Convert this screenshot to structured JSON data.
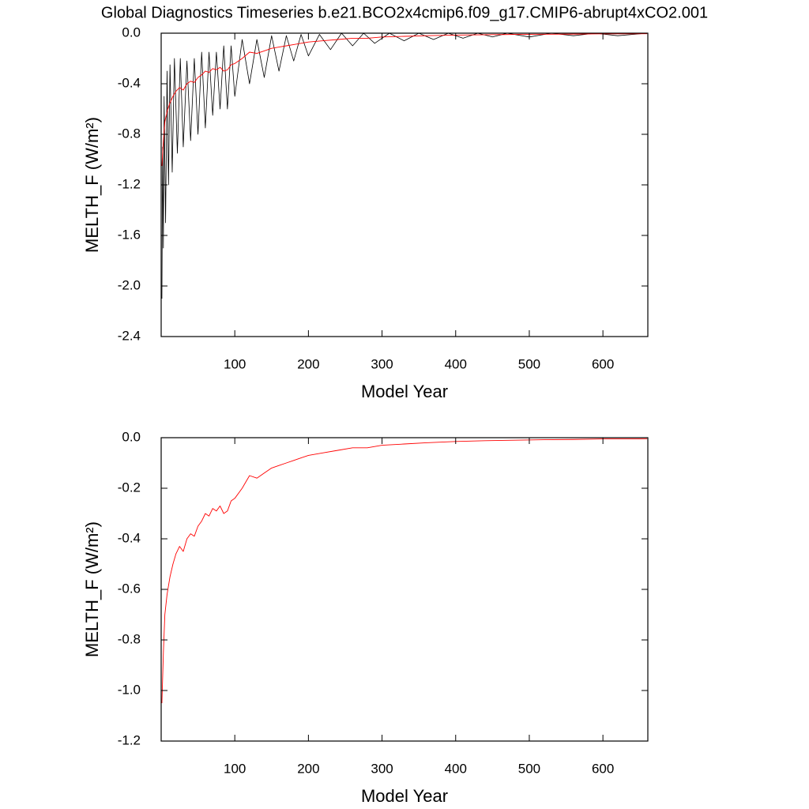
{
  "chart_data": [
    {
      "type": "line",
      "title": "Global Diagnostics Timeseries b.e21.BCO2x4cmip6.f09_g17.CMIP6-abrupt4xCO2.001",
      "xlabel": "Model Year",
      "ylabel": "MELTH_F (W/m²)",
      "xlim": [
        0,
        661
      ],
      "ylim": [
        -2.4,
        0
      ],
      "xticks": [
        100,
        200,
        300,
        400,
        500,
        600
      ],
      "yticks": [
        -2.4,
        {
          "value": -2.0,
          "label": "-2.0"
        },
        -1.6,
        -1.2,
        -0.8,
        -0.4,
        {
          "value": 0,
          "label": "0.0"
        }
      ],
      "series": [
        {
          "color": "#000000",
          "x": [
            1,
            2,
            3,
            4,
            6,
            8,
            10,
            12,
            15,
            18,
            22,
            26,
            30,
            35,
            40,
            45,
            50,
            55,
            60,
            65,
            70,
            75,
            80,
            85,
            90,
            95,
            100,
            110,
            120,
            130,
            140,
            150,
            160,
            170,
            180,
            190,
            200,
            215,
            230,
            245,
            260,
            275,
            290,
            310,
            330,
            350,
            370,
            390,
            410,
            430,
            450,
            470,
            500,
            530,
            560,
            590,
            620,
            660
          ],
          "values": [
            -2.1,
            -0.9,
            -1.7,
            -0.5,
            -1.5,
            -0.3,
            -1.2,
            -0.25,
            -1.1,
            -0.2,
            -0.95,
            -0.2,
            -0.9,
            -0.22,
            -0.85,
            -0.2,
            -0.8,
            -0.15,
            -0.75,
            -0.15,
            -0.65,
            -0.15,
            -0.6,
            -0.1,
            -0.6,
            -0.1,
            -0.5,
            -0.05,
            -0.4,
            -0.05,
            -0.35,
            -0.02,
            -0.3,
            -0.02,
            -0.22,
            -0.01,
            -0.18,
            -0.01,
            -0.13,
            0,
            -0.1,
            0,
            -0.08,
            0,
            -0.06,
            0,
            -0.05,
            0,
            -0.04,
            0,
            -0.03,
            0,
            -0.03,
            0,
            -0.02,
            0,
            -0.02,
            0
          ]
        },
        {
          "color": "#ff0000",
          "x": [
            1,
            3,
            5,
            8,
            12,
            16,
            20,
            25,
            30,
            35,
            40,
            45,
            50,
            55,
            60,
            65,
            70,
            75,
            80,
            85,
            90,
            95,
            100,
            110,
            120,
            130,
            140,
            150,
            160,
            170,
            180,
            190,
            200,
            220,
            240,
            260,
            280,
            300,
            330,
            360,
            400,
            440,
            480,
            520,
            560,
            600,
            640,
            660
          ],
          "values": [
            -1.05,
            -0.85,
            -0.7,
            -0.62,
            -0.55,
            -0.5,
            -0.46,
            -0.43,
            -0.45,
            -0.4,
            -0.38,
            -0.39,
            -0.35,
            -0.33,
            -0.3,
            -0.31,
            -0.28,
            -0.29,
            -0.27,
            -0.3,
            -0.29,
            -0.25,
            -0.24,
            -0.2,
            -0.15,
            -0.16,
            -0.14,
            -0.12,
            -0.11,
            -0.1,
            -0.09,
            -0.08,
            -0.07,
            -0.06,
            -0.05,
            -0.04,
            -0.04,
            -0.03,
            -0.025,
            -0.02,
            -0.015,
            -0.012,
            -0.01,
            -0.008,
            -0.007,
            -0.005,
            -0.005,
            -0.004
          ]
        }
      ]
    },
    {
      "type": "line",
      "xlabel": "Model Year",
      "ylabel": "MELTH_F (W/m²)",
      "xlim": [
        0,
        661
      ],
      "ylim": [
        -1.2,
        0
      ],
      "xticks": [
        100,
        200,
        300,
        400,
        500,
        600
      ],
      "yticks": [
        -1.2,
        {
          "value": -1.0,
          "label": "-1.0"
        },
        -0.8,
        -0.6,
        -0.4,
        -0.2,
        {
          "value": 0,
          "label": "0.0"
        }
      ],
      "series": [
        {
          "color": "#ff0000",
          "x": [
            1,
            3,
            5,
            8,
            12,
            16,
            20,
            25,
            30,
            35,
            40,
            45,
            50,
            55,
            60,
            65,
            70,
            75,
            80,
            85,
            90,
            95,
            100,
            110,
            120,
            130,
            140,
            150,
            160,
            170,
            180,
            190,
            200,
            220,
            240,
            260,
            280,
            300,
            330,
            360,
            400,
            440,
            480,
            520,
            560,
            600,
            640,
            660
          ],
          "values": [
            -1.05,
            -0.85,
            -0.7,
            -0.62,
            -0.55,
            -0.5,
            -0.46,
            -0.43,
            -0.45,
            -0.4,
            -0.38,
            -0.39,
            -0.35,
            -0.33,
            -0.3,
            -0.31,
            -0.28,
            -0.29,
            -0.27,
            -0.3,
            -0.29,
            -0.25,
            -0.24,
            -0.2,
            -0.15,
            -0.16,
            -0.14,
            -0.12,
            -0.11,
            -0.1,
            -0.09,
            -0.08,
            -0.07,
            -0.06,
            -0.05,
            -0.04,
            -0.04,
            -0.03,
            -0.025,
            -0.02,
            -0.015,
            -0.012,
            -0.01,
            -0.008,
            -0.007,
            -0.005,
            -0.005,
            -0.004
          ]
        }
      ]
    }
  ]
}
